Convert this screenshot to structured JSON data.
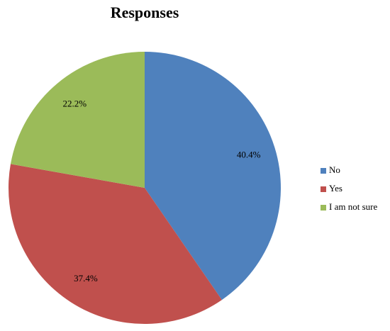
{
  "chart_data": {
    "type": "pie",
    "title": "Responses",
    "categories": [
      "No",
      "Yes",
      "I am not sure"
    ],
    "values": [
      40.4,
      37.4,
      22.2
    ],
    "value_labels": [
      "40.4%",
      "37.4%",
      "22.2%"
    ],
    "colors": [
      "#4f81bd",
      "#c0504d",
      "#9bbb59"
    ],
    "legend": "right"
  }
}
